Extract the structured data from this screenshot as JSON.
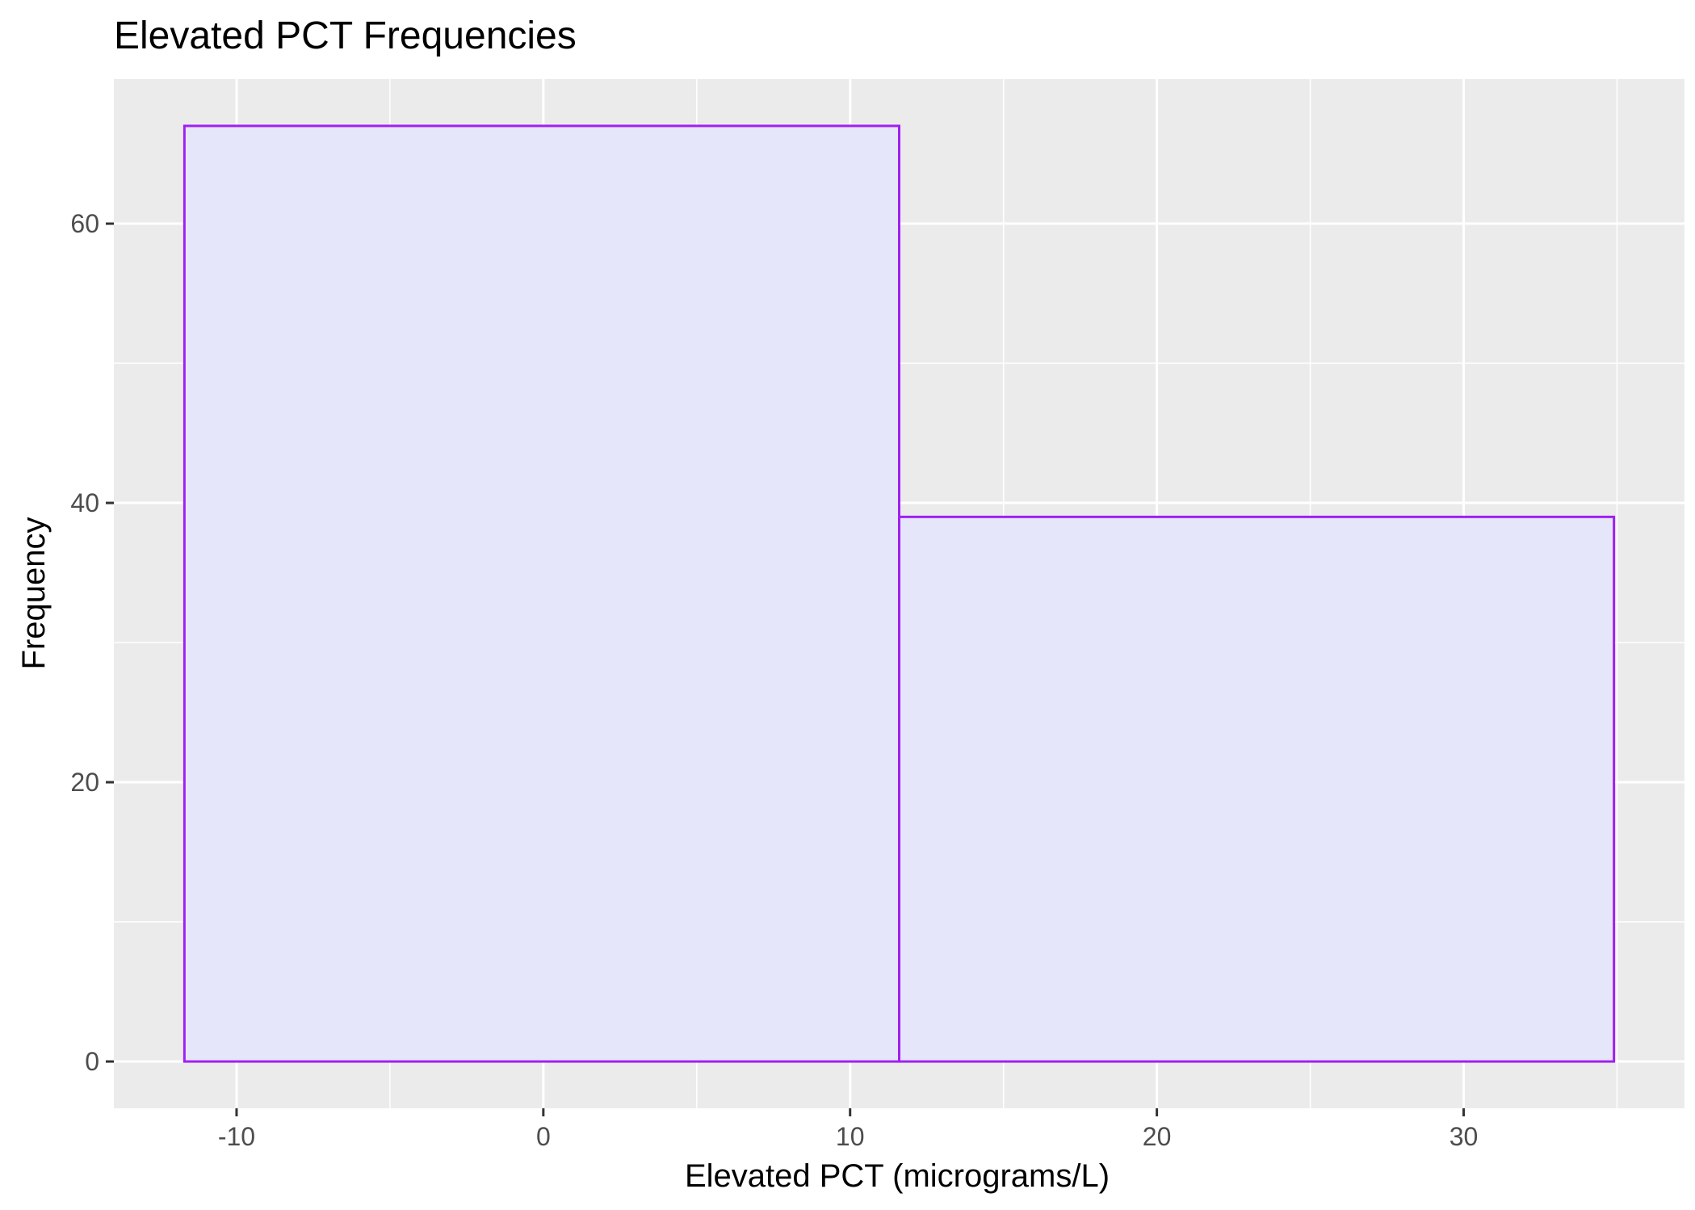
{
  "chart_data": {
    "type": "bar",
    "title": "Elevated PCT Frequencies",
    "xlabel": "Elevated PCT (micrograms/L)",
    "ylabel": "Frequency",
    "bins": [
      {
        "x_start": -11.7,
        "x_end": 11.6,
        "count": 67
      },
      {
        "x_start": 11.6,
        "x_end": 34.9,
        "count": 39
      }
    ],
    "xlim": [
      -14.0,
      37.2
    ],
    "ylim": [
      -3.35,
      70.35
    ],
    "x_ticks": [
      -10,
      0,
      10,
      20,
      30
    ],
    "x_tick_labels": [
      "-10",
      "0",
      "10",
      "20",
      "30"
    ],
    "y_ticks": [
      0,
      20,
      40,
      60
    ],
    "y_tick_labels": [
      "0",
      "20",
      "40",
      "60"
    ],
    "x_minor_ticks": [
      -5,
      5,
      15,
      25,
      35
    ],
    "y_minor_ticks": [
      10,
      30,
      50
    ],
    "grid": true,
    "legend": "none",
    "colors": {
      "panel_background": "#EBEBEB",
      "grid_line": "#FFFFFF",
      "bar_fill": "#E6E6FA",
      "bar_outline": "#A020F0",
      "tick_mark": "#333333"
    }
  }
}
